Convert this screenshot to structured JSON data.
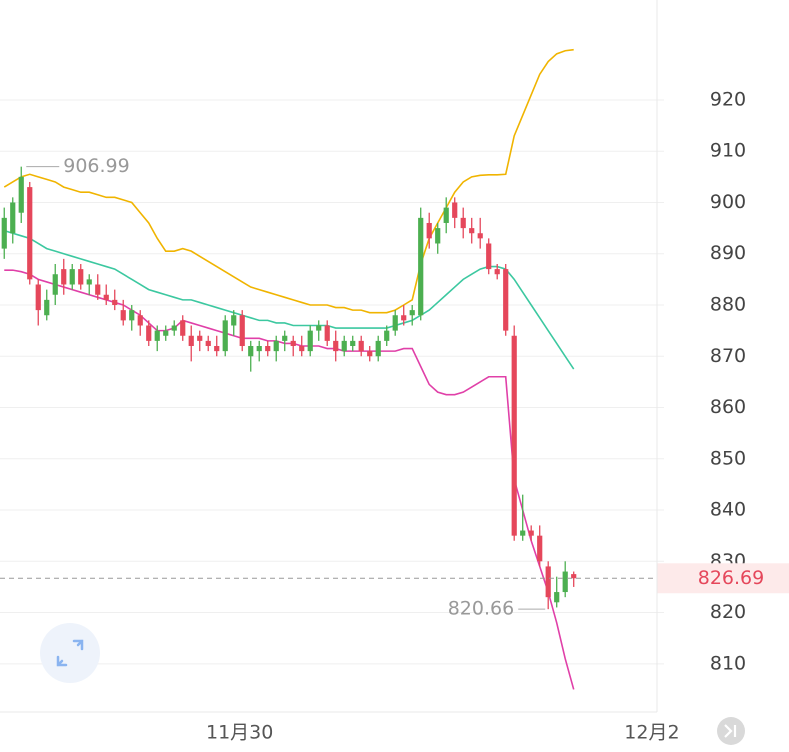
{
  "chart_data": {
    "type": "candlestick",
    "x": [
      0,
      1,
      2,
      3,
      4,
      5,
      6,
      7,
      8,
      9,
      10,
      11,
      12,
      13,
      14,
      15,
      16,
      17,
      18,
      19,
      20,
      21,
      22,
      23,
      24,
      25,
      26,
      27,
      28,
      29,
      30,
      31,
      32,
      33,
      34,
      35,
      36,
      37,
      38,
      39,
      40,
      41,
      42,
      43,
      44,
      45,
      46,
      47,
      48,
      49,
      50,
      51,
      52,
      53,
      54,
      55,
      56,
      57,
      58,
      59,
      60,
      61,
      62,
      63,
      64,
      65,
      66,
      67
    ],
    "open": [
      891,
      894,
      898,
      903,
      884,
      878,
      882,
      887,
      884,
      887,
      884,
      884,
      882,
      881,
      879,
      877,
      878,
      876,
      873,
      874,
      875,
      877,
      874,
      874,
      873,
      872,
      871,
      876,
      878,
      870,
      871,
      872,
      871,
      873,
      873,
      872,
      871,
      875,
      876,
      873,
      871,
      872,
      873,
      871,
      870,
      873,
      875,
      878,
      878,
      878,
      896,
      892,
      896,
      900,
      897,
      895,
      894,
      892,
      887,
      887,
      874,
      835,
      836,
      835,
      829,
      822,
      824,
      827.5
    ],
    "high": [
      899,
      901,
      906.99,
      904,
      885,
      883,
      888,
      889,
      888,
      888,
      886,
      886,
      884,
      883,
      881,
      880,
      879,
      877,
      876,
      876,
      877,
      878,
      876,
      875,
      874,
      874,
      878,
      879,
      879,
      873,
      873,
      873,
      874,
      875,
      874,
      874,
      876,
      877,
      877,
      875,
      874,
      874,
      874,
      872,
      874,
      876,
      879,
      880,
      880,
      899,
      898,
      896,
      901,
      901,
      899,
      897,
      897,
      893,
      888,
      888,
      876,
      843,
      837,
      837,
      830,
      827,
      830,
      828
    ],
    "low": [
      889,
      892,
      896,
      884,
      876,
      877,
      880,
      882,
      883,
      883,
      882,
      881,
      880,
      879,
      876,
      875,
      874,
      872,
      871,
      873,
      874,
      873,
      869,
      871,
      871,
      870,
      870,
      874,
      871,
      867,
      869,
      870,
      869,
      871,
      870,
      870,
      870,
      873,
      872,
      869,
      870,
      871,
      870,
      869,
      869,
      872,
      874,
      876,
      876,
      877,
      891,
      890,
      894,
      895,
      893,
      892,
      891,
      886,
      885,
      874,
      834,
      834,
      834,
      829,
      820.66,
      821,
      823,
      825
    ],
    "close": [
      897,
      900,
      905,
      885,
      879,
      881,
      886,
      884,
      887,
      884,
      885,
      882,
      881,
      880,
      877,
      879,
      876,
      873,
      875,
      875,
      876,
      874,
      872,
      873,
      872,
      871,
      877,
      878,
      872,
      872,
      872,
      871,
      873,
      874,
      872,
      871,
      875,
      876,
      873,
      871,
      873,
      873,
      871,
      870,
      873,
      875,
      878,
      877,
      879,
      897,
      893,
      895,
      899,
      897,
      895,
      894,
      893,
      887,
      886,
      875,
      835,
      836,
      835,
      830,
      823,
      824,
      828,
      826.69
    ],
    "up_color": "#4caf50",
    "down_color": "#e5475b",
    "series": [
      {
        "color": "#f0b400",
        "values": [
          903,
          904,
          905,
          905.5,
          905,
          904.5,
          904,
          903,
          902.5,
          902,
          902,
          901.5,
          901,
          901,
          900.5,
          900,
          898,
          896,
          893,
          890.5,
          890.5,
          891,
          890.5,
          889.5,
          888.5,
          887.5,
          886.5,
          885.5,
          884.5,
          883.5,
          883,
          882.5,
          882,
          881.5,
          881,
          880.5,
          880,
          880,
          880,
          879.5,
          879.5,
          879,
          879,
          878.5,
          878.5,
          878.5,
          879,
          880,
          881,
          888,
          893,
          896,
          899,
          902,
          904,
          905,
          905.3,
          905.4,
          905.4,
          905.5,
          913,
          917,
          921,
          925,
          927.5,
          929,
          929.6,
          929.8
        ]
      },
      {
        "color": "#3cc8a0",
        "values": [
          894.5,
          894,
          893.5,
          893,
          892,
          891,
          890.5,
          890,
          889.5,
          889,
          888.5,
          888,
          887.5,
          887,
          886,
          885,
          884,
          883,
          882.5,
          882,
          881.5,
          881,
          881,
          880.5,
          880,
          879.5,
          879,
          878.5,
          878,
          877.5,
          877,
          877,
          876.5,
          876.5,
          876,
          876,
          876,
          876,
          876,
          875.5,
          875.5,
          875.5,
          875.5,
          875.5,
          875.5,
          875.5,
          876,
          876.5,
          877,
          878,
          879,
          880.5,
          882,
          883.5,
          885,
          886,
          887,
          887.5,
          887.5,
          887,
          885,
          882.5,
          880,
          877.5,
          875,
          872.5,
          870,
          867.5
        ]
      },
      {
        "color": "#e040a8",
        "values": [
          886.8,
          886.8,
          886.5,
          886,
          885,
          884.5,
          884,
          883.5,
          883,
          882.5,
          882,
          881.5,
          881,
          880.5,
          880,
          879,
          878,
          876.5,
          875,
          875,
          875.5,
          877,
          876.5,
          876,
          875.5,
          875,
          874.5,
          874,
          873.5,
          873.5,
          873.5,
          873,
          873,
          872.5,
          872.5,
          872,
          872,
          872,
          871.5,
          871.5,
          871,
          871,
          871,
          871,
          871,
          871,
          871,
          871.5,
          871.5,
          868,
          864.5,
          863,
          862.5,
          862.5,
          863,
          864,
          865,
          866,
          866,
          866,
          846,
          840,
          834,
          829,
          824,
          818,
          811,
          805
        ]
      }
    ],
    "xlim": [
      -0.5,
      76.8
    ],
    "ylim": [
      800.6,
      939.5
    ],
    "yticks": [
      810,
      820,
      830,
      840,
      850,
      860,
      870,
      880,
      890,
      900,
      910,
      920
    ],
    "xticks": [
      {
        "value": 27.7,
        "label": "11月30"
      },
      {
        "value": 76.2,
        "label": "12月2"
      }
    ],
    "grid": true
  }
}
